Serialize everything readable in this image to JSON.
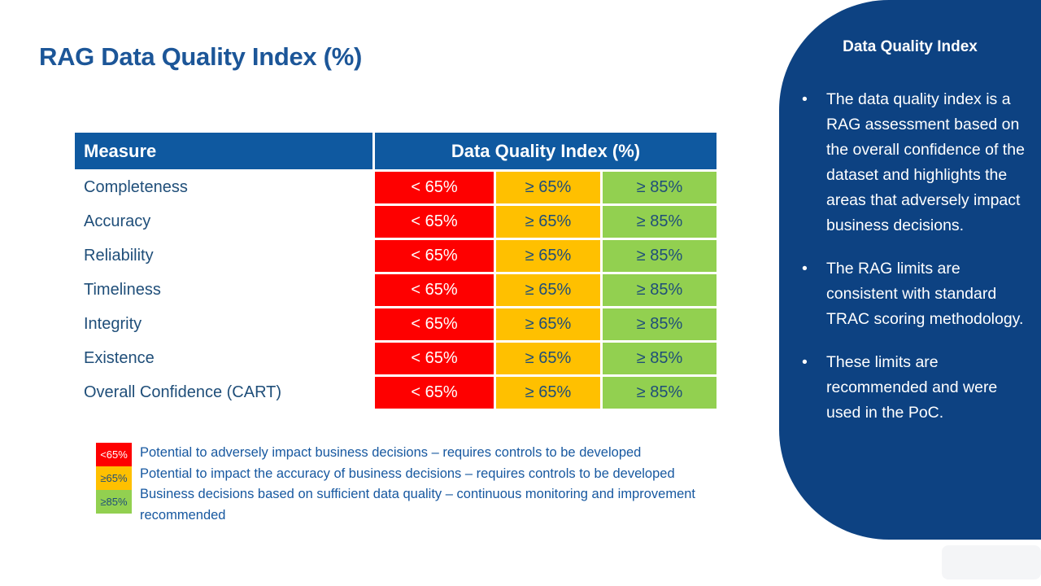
{
  "slide": {
    "title": "RAG Data Quality Index (%)"
  },
  "table": {
    "header": {
      "measure": "Measure",
      "dqi": "Data Quality Index (%)"
    },
    "rows": [
      {
        "measure": "Completeness",
        "red": "< 65%",
        "amber": "≥ 65%",
        "green": "≥ 85%"
      },
      {
        "measure": "Accuracy",
        "red": "< 65%",
        "amber": "≥ 65%",
        "green": "≥ 85%"
      },
      {
        "measure": "Reliability",
        "red": "< 65%",
        "amber": "≥ 65%",
        "green": "≥ 85%"
      },
      {
        "measure": "Timeliness",
        "red": "< 65%",
        "amber": "≥ 65%",
        "green": "≥ 85%"
      },
      {
        "measure": "Integrity",
        "red": "< 65%",
        "amber": "≥ 65%",
        "green": "≥ 85%"
      },
      {
        "measure": "Existence",
        "red": "< 65%",
        "amber": "≥ 65%",
        "green": "≥ 85%"
      },
      {
        "measure": "Overall Confidence (CART)",
        "red": "< 65%",
        "amber": "≥ 65%",
        "green": "≥ 85%"
      }
    ]
  },
  "legend": {
    "items": [
      {
        "swatch": "<65%",
        "color": "#fe0000",
        "text": "Potential to adversely impact business decisions – requires controls to be developed"
      },
      {
        "swatch": "≥65%",
        "color": "#ffc000",
        "text": "Potential to impact the accuracy of business decisions – requires controls to be developed"
      },
      {
        "swatch": "≥85%",
        "color": "#92d050",
        "text": "Business decisions based on sufficient data quality – continuous monitoring and improvement recommended"
      }
    ]
  },
  "sidebar": {
    "heading": "Data Quality Index",
    "bullets": [
      "The data quality index is a RAG assessment based on the overall confidence of the dataset and highlights the areas that adversely impact business decisions.",
      "The RAG limits are consistent with standard TRAC scoring methodology.",
      "These limits are recommended and were used in the PoC."
    ]
  },
  "colors": {
    "title_blue": "#1c5698",
    "header_blue": "#0f59a0",
    "sidebar_navy": "#0d4282",
    "row_odd": "#ccd2df",
    "row_even": "#e7eaf1",
    "cell_text_blue": "#1f4e79",
    "legend_text_blue": "#1758a0",
    "red": "#fe0000",
    "amber": "#ffc000",
    "green": "#92d050"
  }
}
